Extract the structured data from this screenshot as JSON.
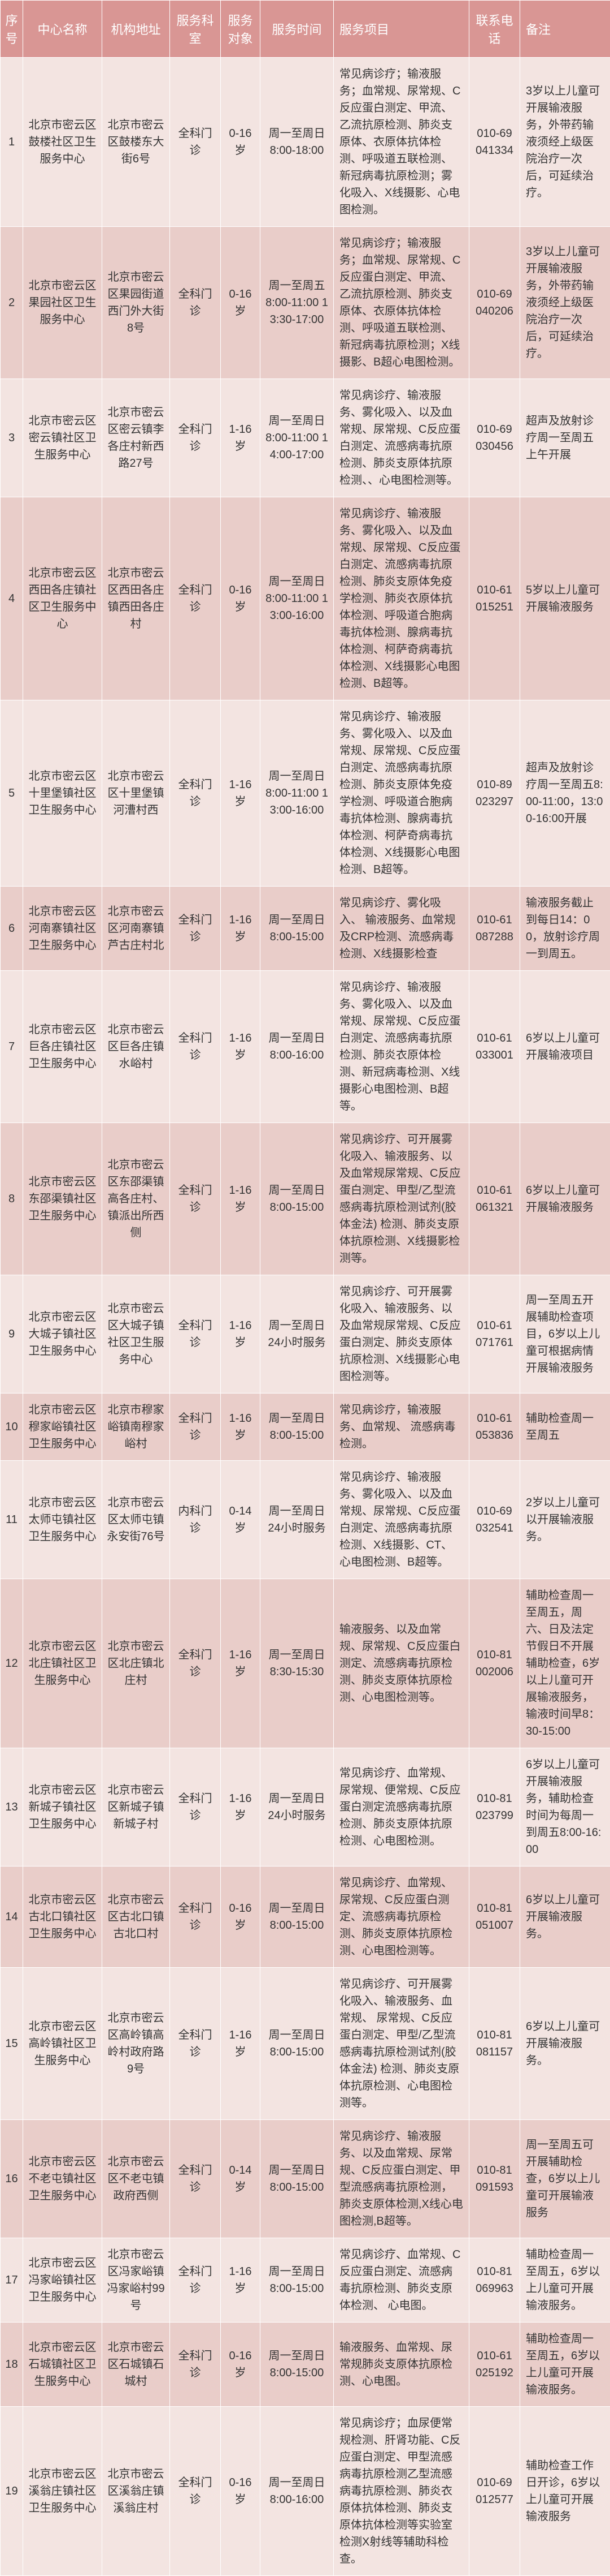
{
  "columns": [
    {
      "key": "seq",
      "label": "序号",
      "cls": "col-seq"
    },
    {
      "key": "name",
      "label": "中心名称",
      "cls": "col-name"
    },
    {
      "key": "addr",
      "label": "机构地址",
      "cls": "col-addr"
    },
    {
      "key": "dept",
      "label": "服务科室",
      "cls": "col-dept"
    },
    {
      "key": "age",
      "label": "服务对象",
      "cls": "col-age"
    },
    {
      "key": "time",
      "label": "服务时间",
      "cls": "col-time"
    },
    {
      "key": "svc",
      "label": "服务项目",
      "cls": "col-svc"
    },
    {
      "key": "phone",
      "label": "联系电话",
      "cls": "col-phone"
    },
    {
      "key": "note",
      "label": "备注",
      "cls": "col-note"
    }
  ],
  "rows": [
    {
      "seq": "1",
      "name": "北京市密云区鼓楼社区卫生服务中心",
      "addr": "北京市密云区鼓楼东大街6号",
      "dept": "全科门诊",
      "age": "0-16岁",
      "time": "周一至周日 8:00-18:00",
      "svc": "常见病诊疗；输液服务；血常规、尿常规、C反应蛋白测定、甲流、乙流抗原检测、肺炎支原体、衣原体抗体检测、呼吸道五联检测、新冠病毒抗原检测；雾化吸入、X线摄影、心电图检测。",
      "phone": "010-69041334",
      "note": "3岁以上儿童可开展输液服务，外带药输液须经上级医院治疗一次后，可延续治疗。"
    },
    {
      "seq": "2",
      "name": "北京市密云区果园社区卫生服务中心",
      "addr": "北京市密云区果园街道西门外大街8号",
      "dept": "全科门诊",
      "age": "0-16岁",
      "time": "周一至周五 8:00-11:00 13:30-17:00",
      "svc": "常见病诊疗；输液服务；血常规、尿常规、C反应蛋白测定、甲流、乙流抗原检测、肺炎支原体、衣原体抗体检测、呼吸道五联检测、新冠病毒抗原检测；X线摄影、B超心电图检测。",
      "phone": "010-69040206",
      "note": "3岁以上儿童可开展输液服务，外带药输液须经上级医院治疗一次后，可延续治疗。"
    },
    {
      "seq": "3",
      "name": "北京市密云区密云镇社区卫生服务中心",
      "addr": "北京市密云区密云镇李各庄村新西路27号",
      "dept": "全科门诊",
      "age": "1-16岁",
      "time": "周一至周日 8:00-11:00 14:00-17:00",
      "svc": "常见病诊疗、输液服务、雾化吸入、以及血常规、尿常规、C反应蛋白测定、流感病毒抗原检测、肺炎支原体抗原检测、、心电图检测等。",
      "phone": "010-69030456",
      "note": "超声及放射诊疗周一至周五上午开展"
    },
    {
      "seq": "4",
      "name": "北京市密云区西田各庄镇社区卫生服务中心",
      "addr": "北京市密云区西田各庄镇西田各庄村",
      "dept": "全科门诊",
      "age": "0-16岁",
      "time": "周一至周日 8:00-11:00 13:00-16:00",
      "svc": "常见病诊疗、输液服务、雾化吸入、以及血常规、尿常规、C反应蛋白测定、流感病毒抗原检测、肺炎支原体免疫学检测、肺炎衣原体抗体检测、呼吸道合胞病毒抗体检测、腺病毒抗体检测、柯萨奇病毒抗体检测、X线摄影心电图检测、B超等。",
      "phone": "010-61015251",
      "note": "5岁以上儿童可开展输液服务"
    },
    {
      "seq": "5",
      "name": "北京市密云区十里堡镇社区卫生服务中心",
      "addr": "北京市密云区十里堡镇河漕村西",
      "dept": "全科门诊",
      "age": "1-16岁",
      "time": "周一至周日 8:00-11:00 13:00-16:00",
      "svc": "常见病诊疗、输液服务、雾化吸入、以及血常规、尿常规、C反应蛋白测定、流感病毒抗原检测、肺炎支原体免疫学检测、呼吸道合胞病毒抗体检测、腺病毒抗体检测、柯萨奇病毒抗体检测、X线摄影心电图检测、B超等。",
      "phone": "010-89023297",
      "note": "超声及放射诊疗周一至周五8:00-11:00，13:00-16:00开展"
    },
    {
      "seq": "6",
      "name": "北京市密云区河南寨镇社区卫生服务中心",
      "addr": "北京市密云区河南寨镇芦古庄村北",
      "dept": "全科门诊",
      "age": "1-16岁",
      "time": "周一至周日 8:00-15:00",
      "svc": "常见病诊疗、雾化吸入、 输液服务、血常规及CRP检测、流感病毒检测、X线摄影检查",
      "phone": "010-61087288",
      "note": "输液服务截止到每日14：00，放射诊疗周一到周五。"
    },
    {
      "seq": "7",
      "name": "北京市密云区巨各庄镇社区卫生服务中心",
      "addr": "北京市密云区巨各庄镇水峪村",
      "dept": "全科门诊",
      "age": "1-16岁",
      "time": "周一至周日 8:00-16:00",
      "svc": "常见病诊疗、输液服务、雾化吸入、以及血常规、尿常规、C反应蛋白测定、流感病毒抗原检测、肺炎衣原体检测、新冠病毒检测、X线摄影心电图检测、B超等。",
      "phone": "010-61033001",
      "note": "6岁以上儿童可开展输液项目"
    },
    {
      "seq": "8",
      "name": "北京市密云区东邵渠镇社区卫生服务中心",
      "addr": "北京市密云区东邵渠镇高各庄村、镇派出所西侧",
      "dept": "全科门诊",
      "age": "1-16岁",
      "time": "周一至周日 8:00-15:00",
      "svc": "常见病诊疗、可开展雾化吸入、输液服务、以及血常规尿常规、C反应蛋白测定、甲型/乙型流感病毒抗原检测试剂(胶体金法) 检测、肺炎支原体抗原检测、X线摄影检测等。",
      "phone": "010-61061321",
      "note": "6岁以上儿童可开展输液服务"
    },
    {
      "seq": "9",
      "name": "北京市密云区大城子镇社区卫生服务中心",
      "addr": "北京市密云区大城子镇社区卫生服务中心",
      "dept": "全科门诊",
      "age": "1-16岁",
      "time": "周一至周日 24小时服务",
      "svc": "常见病诊疗、可开展雾化吸入、输液服务、以及血常规尿常规、C反应蛋白测定、肺炎支原体抗原检测、X线摄影心电图检测等。",
      "phone": "010-61071761",
      "note": "周一至周五开展辅助检查项目，6岁以上儿童可根据病情开展输液服务"
    },
    {
      "seq": "10",
      "name": "北京市密云区穆家峪镇社区卫生服务中心",
      "addr": "北京市穆家峪镇南穆家峪村",
      "dept": "全科门诊",
      "age": "1-16岁",
      "time": "周一至周日 8:00-15:00",
      "svc": "常见病诊疗，输液服务、血常规、 流感病毒检测。",
      "phone": "010-61053836",
      "note": "辅助检查周一至周五"
    },
    {
      "seq": "11",
      "name": "北京市密云区太师屯镇社区卫生服务中心",
      "addr": "北京市密云区太师屯镇永安街76号",
      "dept": "内科门诊",
      "age": "0-14岁",
      "time": "周一至周日 24小时服务",
      "svc": "常见病诊疗、输液服务、雾化吸入、以及血常规、尿常规、C反应蛋白测定、流感病毒抗原检测、X线摄影、CT、心电图检测、B超等。",
      "phone": "010-69032541",
      "note": "2岁以上儿童可以开展输液服务。"
    },
    {
      "seq": "12",
      "name": "北京市密云区北庄镇社区卫生服务中心",
      "addr": "北京市密云区北庄镇北庄村",
      "dept": "全科门诊",
      "age": "1-16岁",
      "time": "周一至周日 8:30-15:30",
      "svc": "输液服务、以及血常规、尿常规、C反应蛋白测定、流感病毒抗原检测、肺炎支原体抗原检测、心电图检测等。",
      "phone": "010-81002006",
      "note": "辅助检查周一至周五，周六、日及法定节假日不开展辅助检查，6岁以上儿童可开展输液服务，输液时间早8：30-15:00"
    },
    {
      "seq": "13",
      "name": "北京市密云区新城子镇社区卫生服务中心",
      "addr": "北京市密云区新城子镇新城子村",
      "dept": "全科门诊",
      "age": "1-16岁",
      "time": "周一至周日 24小时服务",
      "svc": "常见病诊疗、血常规、尿常规、便常规、C反应蛋白测定流感病毒抗原检测、肺炎支原体抗原检测、心电图检测。",
      "phone": "010-81023799",
      "note": "6岁以上儿童可开展输液服务，辅助检查时间为每周一到周五8:00-16:00"
    },
    {
      "seq": "14",
      "name": "北京市密云区古北口镇社区卫生服务中心",
      "addr": "北京市密云区古北口镇古北口村",
      "dept": "全科门诊",
      "age": "0-16岁",
      "time": "周一至周日 8:00-15:00",
      "svc": "常见病诊疗、血常规、尿常规、C反应蛋白测定、流感病毒抗原检测、肺炎支原体抗原检测、心电图检测等。",
      "phone": "010-81051007",
      "note": "6岁以上儿童可开展输液服务。"
    },
    {
      "seq": "15",
      "name": "北京市密云区高岭镇社区卫生服务中心",
      "addr": "北京市密云区高岭镇高岭村政府路9号",
      "dept": "全科门诊",
      "age": "1-16岁",
      "time": "周一至周日 8:00-15:00",
      "svc": "常见病诊疗、可开展雾化吸入、输液服务、血常规、 尿常规、C反应蛋白测定、甲型/乙型流感病毒抗原检测试剂(胶体金法) 检测、肺炎支原体抗原检测、心电图检测等。",
      "phone": "010-81081157",
      "note": "6岁以上儿童可开展输液服务。"
    },
    {
      "seq": "16",
      "name": "北京市密云区不老屯镇社区卫生服务中心",
      "addr": "北京市密云区不老屯镇政府西侧",
      "dept": "全科门诊",
      "age": "0-14岁",
      "time": "周一至周日 8:00-15:00",
      "svc": "常见病诊疗、输液服务、以及血常规、尿常规、C反应蛋白测定、甲型流感病毒抗原检测，肺炎支原体检测,X线心电图检测,B超等。",
      "phone": "010-81091593",
      "note": "周一至周五可开展辅助检查，6岁以上儿童可开展输液服务"
    },
    {
      "seq": "17",
      "name": "北京市密云区冯家峪镇社区卫生服务中心",
      "addr": "北京市密云区冯家峪镇冯家峪村99号",
      "dept": "全科门诊",
      "age": "1-16岁",
      "time": "周一至周日 8:00-15:00",
      "svc": "常见病诊疗、血常规、C反应蛋白测定、流感病毒抗原检测、肺炎支原体检测、 心电图。",
      "phone": "010-81069963",
      "note": "辅助检查周一至周五，6岁以上儿童可开展输液服务。"
    },
    {
      "seq": "18",
      "name": "北京市密云区石城镇社区卫生服务中心",
      "addr": "北京市密云区石城镇石城村",
      "dept": "全科门诊",
      "age": "0-16岁",
      "time": "周一至周日 8:00-15:00",
      "svc": "输液服务、血常规、尿常规肺炎支原体抗原检测、心电图。",
      "phone": "010-61025192",
      "note": "辅助检查周一至周五，6岁以上儿童可开展输液服务。"
    },
    {
      "seq": "19",
      "name": "北京市密云区溪翁庄镇社区卫生服务中心",
      "addr": "北京市密云区溪翁庄镇溪翁庄村",
      "dept": "全科门诊",
      "age": "0-16岁",
      "time": "周一至周日 8:00-16:00",
      "svc": "常见病诊疗；血尿便常规检测、肝肾功能、C反应蛋白测定、甲型流感病毒抗原检测乙型流感病毒抗原检测、肺炎衣原体抗体检测、肺炎支原体抗体检测等实验室检测X射线等辅助科检查。",
      "phone": "010-69012577",
      "note": "辅助检查工作日开诊，6岁以上儿童可开展输液服务"
    }
  ],
  "style": {
    "header_bg": "#d99694",
    "header_fg": "#ffffff",
    "row_odd_bg": "#f3e4e1",
    "row_even_bg": "#e9cdc9"
  }
}
